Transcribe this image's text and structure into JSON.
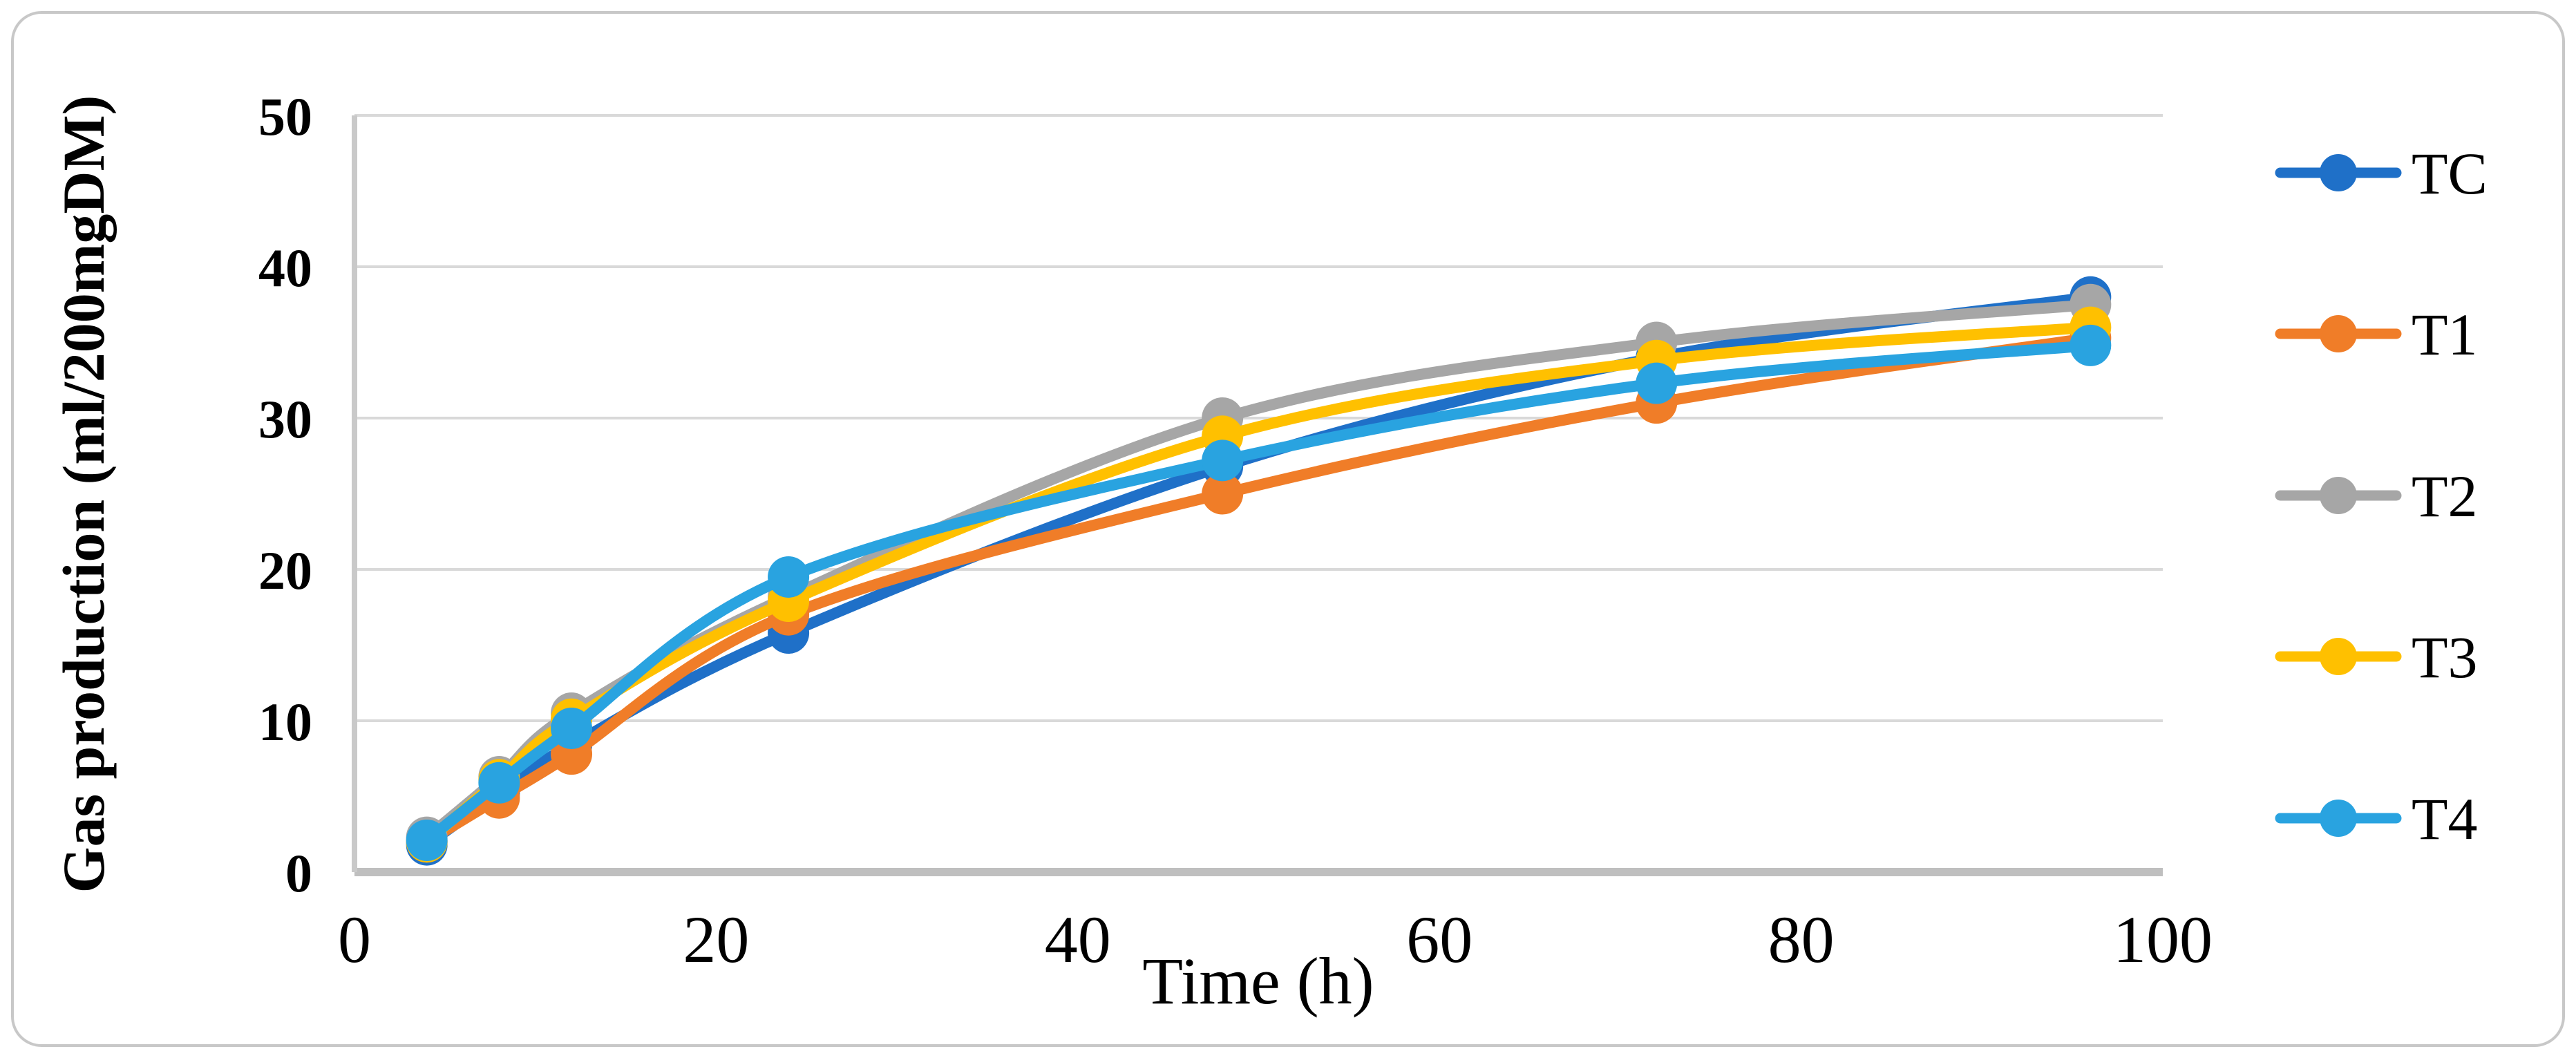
{
  "chart_data": {
    "type": "line",
    "title": "",
    "xlabel": "Time (h)",
    "ylabel": "Gas production (ml/200mgDM)",
    "x": [
      4,
      8,
      12,
      24,
      48,
      72,
      96
    ],
    "xlim": [
      0,
      100
    ],
    "ylim": [
      0,
      50
    ],
    "x_ticks": [
      0,
      20,
      40,
      60,
      80,
      100
    ],
    "y_ticks": [
      0,
      10,
      20,
      30,
      40,
      50
    ],
    "grid": "horizontal",
    "smooth": true,
    "legend_position": "right",
    "grid_color": "#D9D9D9",
    "axis_line_color": "#BFBFBF",
    "figure_border_color": "#C8C8C8",
    "series": [
      {
        "name": "TC",
        "color": "#1F70C8",
        "values": [
          1.8,
          5.2,
          8.4,
          15.8,
          26.8,
          34.0,
          38.0
        ]
      },
      {
        "name": "T1",
        "color": "#F07D28",
        "values": [
          2.0,
          4.9,
          7.8,
          17.0,
          25.0,
          31.0,
          35.3
        ]
      },
      {
        "name": "T2",
        "color": "#A6A6A6",
        "values": [
          2.3,
          6.3,
          10.5,
          18.2,
          30.0,
          35.0,
          37.5
        ]
      },
      {
        "name": "T3",
        "color": "#FFC000",
        "values": [
          2.0,
          6.1,
          10.1,
          17.9,
          28.8,
          33.8,
          36.0
        ]
      },
      {
        "name": "T4",
        "color": "#29A3E0",
        "values": [
          2.1,
          5.9,
          9.5,
          19.5,
          27.2,
          32.3,
          34.8
        ]
      }
    ],
    "legend_labels": [
      "TC",
      "T1",
      "T2",
      "T3",
      "T4"
    ]
  }
}
